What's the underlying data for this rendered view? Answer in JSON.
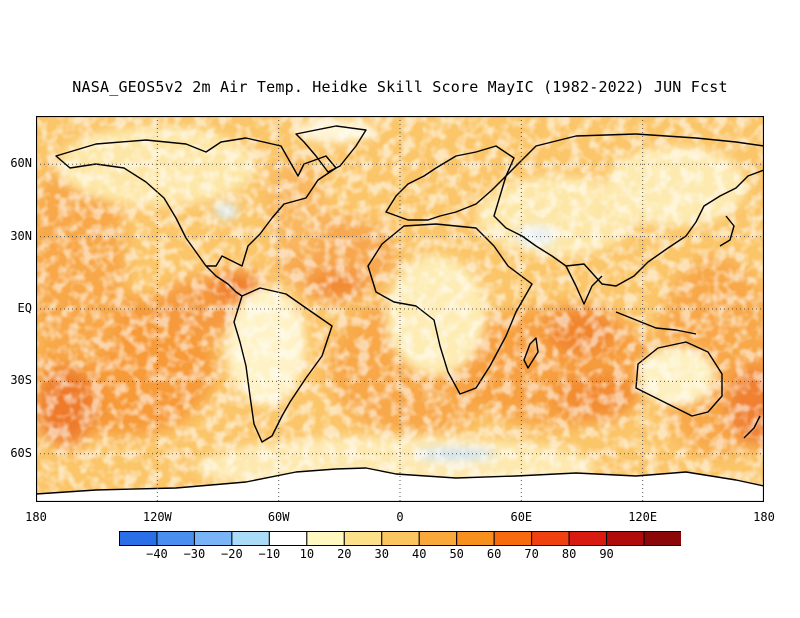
{
  "title": "NASA_GEOS5v2 2m Air Temp. Heidke Skill Score MayIC (1982-2022) JUN Fcst",
  "map": {
    "projection": "equirectangular",
    "lon_range": [
      -180,
      180
    ],
    "lat_range": [
      -80,
      80
    ],
    "y_ticks": [
      {
        "lat": 60,
        "label": "60N"
      },
      {
        "lat": 30,
        "label": "30N"
      },
      {
        "lat": 0,
        "label": "EQ"
      },
      {
        "lat": -30,
        "label": "30S"
      },
      {
        "lat": -60,
        "label": "60S"
      }
    ],
    "x_ticks": [
      {
        "lon": -180,
        "label": "180"
      },
      {
        "lon": -120,
        "label": "120W"
      },
      {
        "lon": -60,
        "label": "60W"
      },
      {
        "lon": 0,
        "label": "0"
      },
      {
        "lon": 60,
        "label": "60E"
      },
      {
        "lon": 120,
        "label": "120E"
      },
      {
        "lon": 180,
        "label": "180"
      }
    ],
    "grid": "dotted"
  },
  "colorbar": {
    "colors": [
      "#2a6fe8",
      "#4a8ff0",
      "#78b4f6",
      "#aadcf8",
      "#ffffff",
      "#fff8c0",
      "#fde08a",
      "#fbc55f",
      "#f9a93a",
      "#f8901e",
      "#f86a0e",
      "#f04010",
      "#d81a10",
      "#b00c0c",
      "#8c0808"
    ],
    "labels": [
      "-40",
      "-30",
      "-20",
      "-10",
      "10",
      "20",
      "30",
      "40",
      "50",
      "60",
      "70",
      "80",
      "90"
    ]
  }
}
